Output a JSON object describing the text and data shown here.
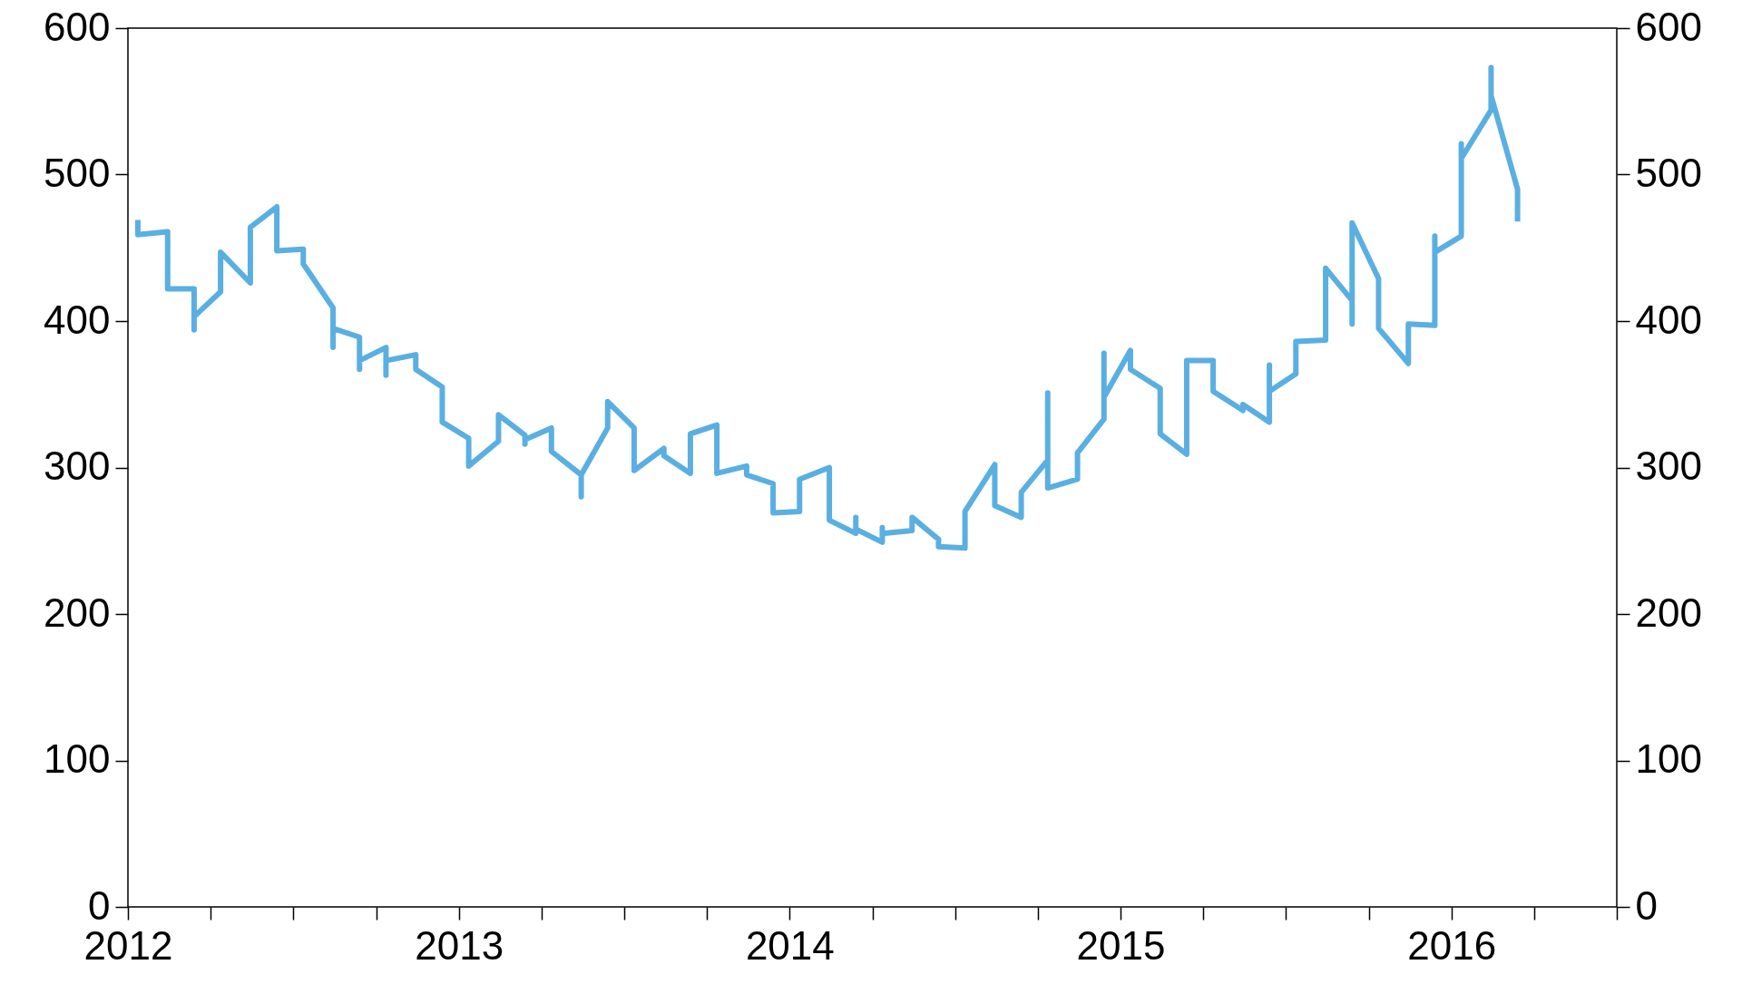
{
  "chart_data": {
    "type": "line",
    "x": [
      2012.03,
      2012.03,
      2012.12,
      2012.12,
      2012.2,
      2012.2,
      2012.2,
      2012.28,
      2012.28,
      2012.37,
      2012.37,
      2012.45,
      2012.45,
      2012.53,
      2012.53,
      2012.62,
      2012.62,
      2012.62,
      2012.7,
      2012.7,
      2012.7,
      2012.78,
      2012.78,
      2012.78,
      2012.87,
      2012.87,
      2012.95,
      2012.95,
      2013.03,
      2013.03,
      2013.12,
      2013.12,
      2013.2,
      2013.2,
      2013.2,
      2013.28,
      2013.28,
      2013.37,
      2013.37,
      2013.37,
      2013.45,
      2013.45,
      2013.53,
      2013.53,
      2013.62,
      2013.62,
      2013.7,
      2013.7,
      2013.78,
      2013.78,
      2013.87,
      2013.87,
      2013.95,
      2013.95,
      2014.03,
      2014.03,
      2014.12,
      2014.12,
      2014.2,
      2014.2,
      2014.2,
      2014.28,
      2014.28,
      2014.28,
      2014.37,
      2014.37,
      2014.45,
      2014.45,
      2014.53,
      2014.53,
      2014.62,
      2014.62,
      2014.7,
      2014.7,
      2014.78,
      2014.78,
      2014.78,
      2014.87,
      2014.87,
      2014.95,
      2014.95,
      2014.95,
      2015.03,
      2015.03,
      2015.12,
      2015.12,
      2015.2,
      2015.2,
      2015.28,
      2015.28,
      2015.37,
      2015.37,
      2015.45,
      2015.45,
      2015.45,
      2015.53,
      2015.53,
      2015.62,
      2015.62,
      2015.7,
      2015.7,
      2015.7,
      2015.78,
      2015.78,
      2015.87,
      2015.87,
      2015.95,
      2015.95,
      2015.95,
      2016.03,
      2016.03,
      2016.03,
      2016.12,
      2016.12,
      2016.12,
      2016.2,
      2016.2
    ],
    "series": [
      {
        "color": "#5aafe2",
        "values": [
          469,
          459,
          461,
          422,
          422,
          394,
          403,
          420,
          447,
          426,
          464,
          478,
          448,
          449,
          439,
          409,
          382,
          395,
          389,
          367,
          373,
          382,
          363,
          373,
          377,
          367,
          355,
          331,
          320,
          301,
          318,
          336,
          322,
          316,
          319,
          327,
          311,
          295,
          280,
          295,
          327,
          345,
          327,
          298,
          313,
          308,
          296,
          323,
          329,
          296,
          301,
          295,
          289,
          269,
          270,
          292,
          300,
          264,
          255,
          266,
          258,
          249,
          259,
          255,
          257,
          266,
          251,
          246,
          245,
          270,
          302,
          274,
          266,
          283,
          305,
          351,
          286,
          292,
          310,
          333,
          378,
          348,
          380,
          367,
          354,
          323,
          309,
          373,
          373,
          352,
          339,
          343,
          331,
          370,
          352,
          364,
          386,
          387,
          436,
          414,
          398,
          467,
          429,
          395,
          371,
          398,
          397,
          458,
          447,
          458,
          521,
          511,
          544,
          573,
          554,
          490,
          468
        ]
      }
    ],
    "xlim": [
      2012,
      2016.5
    ],
    "xticks": [
      2012,
      {
        "value": 2012.25,
        "label": null
      },
      {
        "value": 2012.5,
        "label": null
      },
      {
        "value": 2012.75,
        "label": null
      },
      2013,
      {
        "value": 2013.25,
        "label": null
      },
      {
        "value": 2013.5,
        "label": null
      },
      {
        "value": 2013.75,
        "label": null
      },
      2014,
      {
        "value": 2014.25,
        "label": null
      },
      {
        "value": 2014.5,
        "label": null
      },
      {
        "value": 2014.75,
        "label": null
      },
      2015,
      {
        "value": 2015.25,
        "label": null
      },
      {
        "value": 2015.5,
        "label": null
      },
      {
        "value": 2015.75,
        "label": null
      },
      2016,
      {
        "value": 2016.25,
        "label": null
      },
      {
        "value": 2016.5,
        "label": null
      }
    ],
    "ylim": [
      0,
      600
    ],
    "yticks": [
      0,
      100,
      200,
      300,
      400,
      500,
      600
    ],
    "y2lim": [
      0,
      600
    ],
    "y2ticks": [
      0,
      100,
      200,
      300,
      400,
      500,
      600
    ],
    "grid": false
  }
}
